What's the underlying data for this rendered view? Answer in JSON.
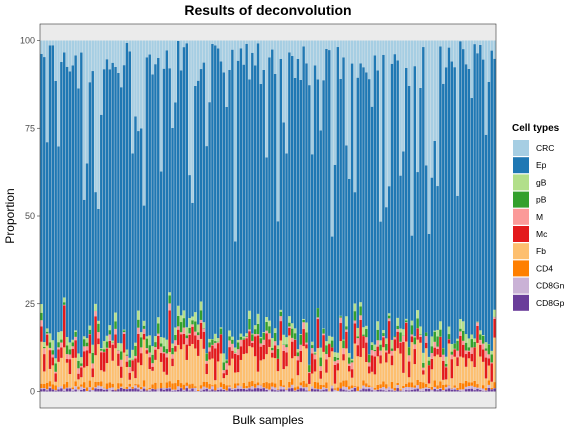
{
  "chart_data": {
    "type": "bar",
    "stacked": true,
    "title": "Results of deconvolution",
    "xlabel": "Bulk samples",
    "ylabel": "Proportion",
    "ylim": [
      0,
      100
    ],
    "yticks": [
      0,
      25,
      50,
      75,
      100
    ],
    "n_samples": 160,
    "panel_background": "#ebebeb",
    "grid": false,
    "legend": {
      "title": "Cell types",
      "position": "right",
      "entries": [
        {
          "name": "CRC",
          "color": "#a6cee3"
        },
        {
          "name": "Ep",
          "color": "#1f78b4"
        },
        {
          "name": "gB",
          "color": "#b2df8a"
        },
        {
          "name": "pB",
          "color": "#33a02c"
        },
        {
          "name": "M",
          "color": "#fb9a99"
        },
        {
          "name": "Mc",
          "color": "#e31a1c"
        },
        {
          "name": "Fb",
          "color": "#fdbf6f"
        },
        {
          "name": "CD4",
          "color": "#ff7f00"
        },
        {
          "name": "CD8Gn",
          "color": "#cab2d6"
        },
        {
          "name": "CD8Gp",
          "color": "#6a3d9a"
        }
      ]
    },
    "series_summary": [
      {
        "name": "CRC",
        "typical_percent_range": [
          0,
          70
        ]
      },
      {
        "name": "Ep",
        "typical_percent_range": [
          25,
          95
        ]
      },
      {
        "name": "gB",
        "typical_percent_range": [
          0,
          3
        ]
      },
      {
        "name": "pB",
        "typical_percent_range": [
          0,
          3
        ]
      },
      {
        "name": "M",
        "typical_percent_range": [
          0,
          2
        ]
      },
      {
        "name": "Mc",
        "typical_percent_range": [
          1,
          6
        ]
      },
      {
        "name": "Fb",
        "typical_percent_range": [
          1,
          12
        ]
      },
      {
        "name": "CD4",
        "typical_percent_range": [
          0,
          2
        ]
      },
      {
        "name": "CD8Gn",
        "typical_percent_range": [
          0,
          1
        ]
      },
      {
        "name": "CD8Gp",
        "typical_percent_range": [
          0,
          1
        ]
      }
    ]
  }
}
